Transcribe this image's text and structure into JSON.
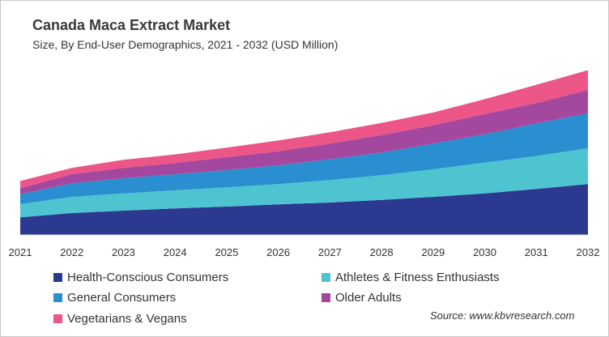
{
  "chart_data": {
    "type": "area",
    "stacked": true,
    "title": "Canada Maca Extract Market",
    "subtitle": "Size, By End-User Demographics, 2021 - 2032 (USD Million)",
    "categories": [
      "2021",
      "2022",
      "2023",
      "2024",
      "2025",
      "2026",
      "2027",
      "2028",
      "2029",
      "2030",
      "2031",
      "2032"
    ],
    "grid": false,
    "legend_position": "bottom",
    "series": [
      {
        "name": "Health-Conscious Consumers",
        "color": "#2b3990",
        "values": [
          21.7,
          27,
          30,
          32.7,
          35,
          37.7,
          40,
          43.3,
          47,
          51.3,
          56.7,
          62.7
        ]
      },
      {
        "name": "Athletes & Fitness Enthusiasts",
        "color": "#4dc4cf",
        "values": [
          16.3,
          20,
          21.3,
          22.3,
          23.7,
          25,
          27.7,
          30.3,
          34,
          38,
          40.7,
          44.3
        ]
      },
      {
        "name": "General Consumers",
        "color": "#2a8fd1",
        "values": [
          12.3,
          16.7,
          18.7,
          20,
          21.3,
          23.3,
          25.7,
          28,
          31.7,
          35,
          40.3,
          43
        ]
      },
      {
        "name": "Older Adults",
        "color": "#a4479e",
        "values": [
          7.3,
          11.3,
          12.7,
          13.7,
          16,
          17.3,
          19.3,
          21.7,
          22.7,
          25,
          25,
          28.7
        ]
      },
      {
        "name": "Vegetarians & Vegans",
        "color": "#ec5587",
        "values": [
          9,
          7.7,
          10,
          10.7,
          11.7,
          13.3,
          14,
          15,
          15.7,
          18.3,
          22.7,
          24.7
        ]
      }
    ],
    "legend_order": [
      0,
      1,
      2,
      3,
      4
    ],
    "source": "Source: www.kbvresearch.com"
  }
}
